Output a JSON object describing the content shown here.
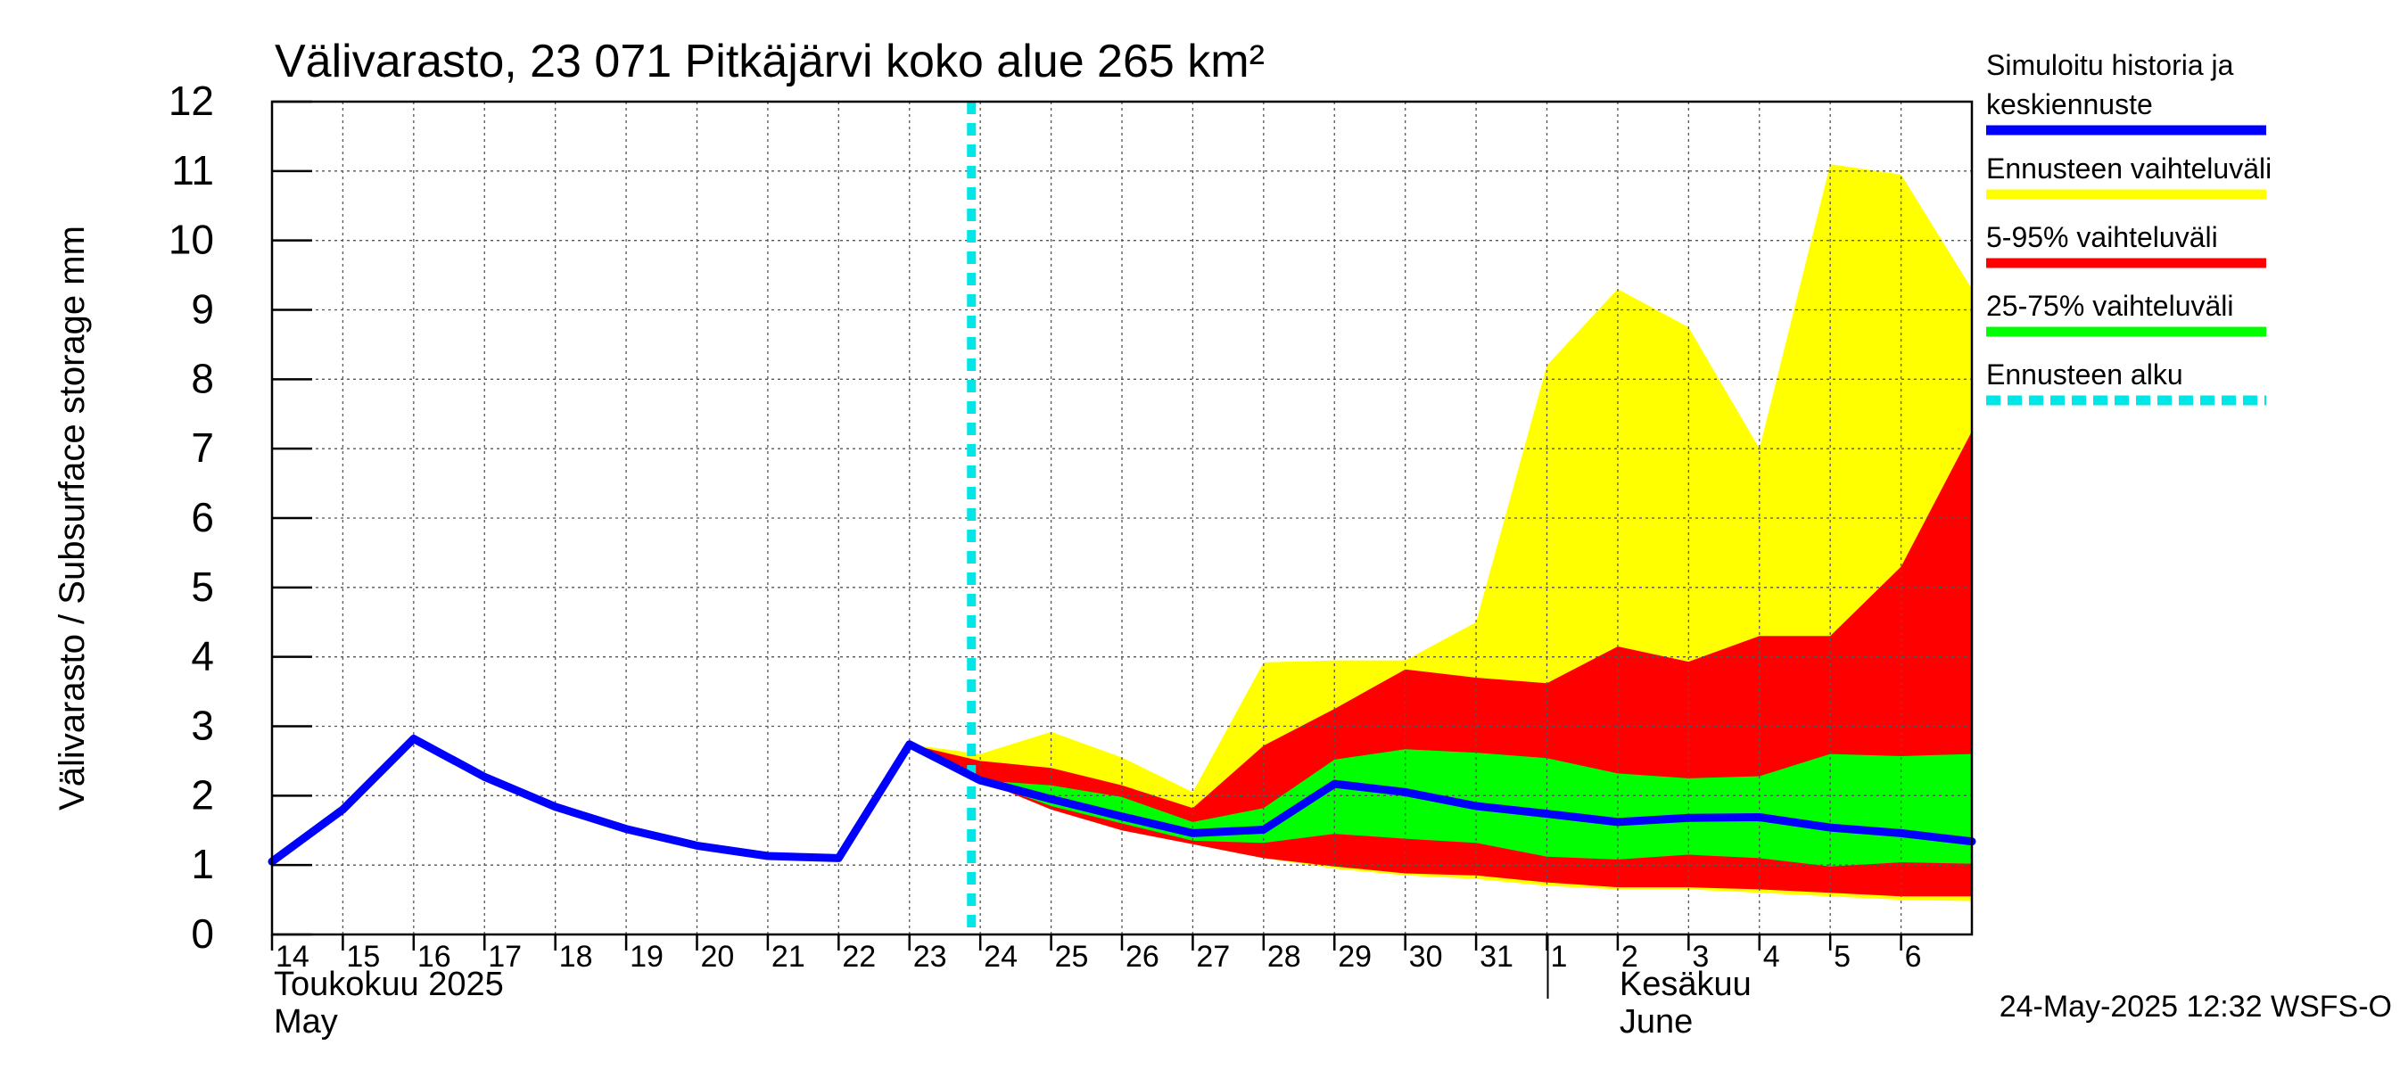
{
  "chart_data": {
    "type": "area",
    "title": "Välivarasto, 23 071 Pitkäjärvi koko alue 265 km²",
    "ylabel": "Välivarasto / Subsurface storage  mm",
    "ylim": [
      0,
      12
    ],
    "yticks": [
      0,
      1,
      2,
      3,
      4,
      5,
      6,
      7,
      8,
      9,
      10,
      11,
      12
    ],
    "grid": true,
    "legend_position": "right",
    "x_start": "2025-05-14",
    "x_end": "2025-06-07",
    "x_tick_labels": [
      "14",
      "15",
      "16",
      "17",
      "18",
      "19",
      "20",
      "21",
      "22",
      "23",
      "24",
      "25",
      "26",
      "27",
      "28",
      "29",
      "30",
      "31",
      "1",
      "2",
      "3",
      "4",
      "5",
      "6"
    ],
    "x_tick_dates": [
      "2025-05-14",
      "2025-05-15",
      "2025-05-16",
      "2025-05-17",
      "2025-05-18",
      "2025-05-19",
      "2025-05-20",
      "2025-05-21",
      "2025-05-22",
      "2025-05-23",
      "2025-05-24",
      "2025-05-25",
      "2025-05-26",
      "2025-05-27",
      "2025-05-28",
      "2025-05-29",
      "2025-05-30",
      "2025-05-31",
      "2025-06-01",
      "2025-06-02",
      "2025-06-03",
      "2025-06-04",
      "2025-06-05",
      "2025-06-06"
    ],
    "month_labels": [
      {
        "fi": "Toukokuu  2025",
        "en": "May",
        "date": "2025-05-14"
      },
      {
        "fi": "Kesäkuu",
        "en": "June",
        "date": "2025-06-02"
      }
    ],
    "month_separator_date": "2025-06-01",
    "forecast_start": "2025-05-23T21:00",
    "x": [
      "2025-05-14",
      "2025-05-15",
      "2025-05-16",
      "2025-05-17",
      "2025-05-18",
      "2025-05-19",
      "2025-05-20",
      "2025-05-21",
      "2025-05-22",
      "2025-05-23",
      "2025-05-24",
      "2025-05-25",
      "2025-05-26",
      "2025-05-27",
      "2025-05-28",
      "2025-05-29",
      "2025-05-30",
      "2025-05-31",
      "2025-06-01",
      "2025-06-02",
      "2025-06-03",
      "2025-06-04",
      "2025-06-05",
      "2025-06-06",
      "2025-06-07"
    ],
    "series": [
      {
        "name": "Simuloitu historia ja keskiennuste",
        "role": "line",
        "color": "#0000ff",
        "values": [
          1.05,
          1.8,
          2.82,
          2.27,
          1.84,
          1.52,
          1.28,
          1.13,
          1.1,
          2.74,
          2.22,
          1.95,
          1.7,
          1.46,
          1.51,
          2.17,
          2.05,
          1.85,
          1.74,
          1.62,
          1.68,
          1.69,
          1.54,
          1.46,
          1.34
        ]
      },
      {
        "name": "Ennusteen vaihteluväli",
        "role": "band",
        "color": "#ffff00",
        "lower": [
          null,
          null,
          null,
          null,
          null,
          null,
          null,
          null,
          null,
          2.74,
          2.22,
          1.8,
          1.5,
          1.3,
          1.1,
          0.95,
          0.85,
          0.8,
          0.7,
          0.65,
          0.65,
          0.6,
          0.55,
          0.5,
          0.48
        ],
        "upper": [
          null,
          null,
          null,
          null,
          null,
          null,
          null,
          null,
          null,
          2.74,
          2.6,
          2.92,
          2.55,
          2.05,
          3.92,
          3.95,
          3.95,
          4.5,
          8.2,
          9.3,
          8.75,
          7.0,
          11.1,
          10.95,
          9.3
        ]
      },
      {
        "name": "5-95% vaihteluväli",
        "role": "band",
        "color": "#ff0000",
        "lower": [
          null,
          null,
          null,
          null,
          null,
          null,
          null,
          null,
          null,
          2.74,
          2.22,
          1.8,
          1.5,
          1.3,
          1.1,
          0.98,
          0.88,
          0.85,
          0.75,
          0.68,
          0.68,
          0.65,
          0.6,
          0.55,
          0.55
        ],
        "upper": [
          null,
          null,
          null,
          null,
          null,
          null,
          null,
          null,
          null,
          2.74,
          2.5,
          2.4,
          2.15,
          1.82,
          2.72,
          3.25,
          3.82,
          3.7,
          3.62,
          4.15,
          3.93,
          4.3,
          4.3,
          5.3,
          7.25
        ]
      },
      {
        "name": "25-75% vaihteluväli",
        "role": "band",
        "color": "#00ff00",
        "lower": [
          null,
          null,
          null,
          null,
          null,
          null,
          null,
          null,
          null,
          2.74,
          2.22,
          1.85,
          1.6,
          1.35,
          1.32,
          1.45,
          1.38,
          1.32,
          1.12,
          1.08,
          1.15,
          1.1,
          0.98,
          1.04,
          1.02
        ],
        "upper": [
          null,
          null,
          null,
          null,
          null,
          null,
          null,
          null,
          null,
          2.74,
          2.22,
          2.15,
          1.98,
          1.62,
          1.82,
          2.52,
          2.67,
          2.62,
          2.54,
          2.32,
          2.25,
          2.28,
          2.6,
          2.57,
          2.6
        ]
      }
    ],
    "legend": [
      {
        "lines": [
          "Simuloitu historia ja",
          "keskiennuste"
        ],
        "color": "#0000ff",
        "style": "solid"
      },
      {
        "lines": [
          "Ennusteen vaihteluväli"
        ],
        "color": "#ffff00",
        "style": "solid"
      },
      {
        "lines": [
          "5-95% vaihteluväli"
        ],
        "color": "#ff0000",
        "style": "solid"
      },
      {
        "lines": [
          "25-75% vaihteluväli"
        ],
        "color": "#00ff00",
        "style": "solid"
      },
      {
        "lines": [
          "Ennusteen alku"
        ],
        "color": "#00e5e5",
        "style": "dashed"
      }
    ],
    "footer": "24-May-2025 12:32 WSFS-O"
  }
}
